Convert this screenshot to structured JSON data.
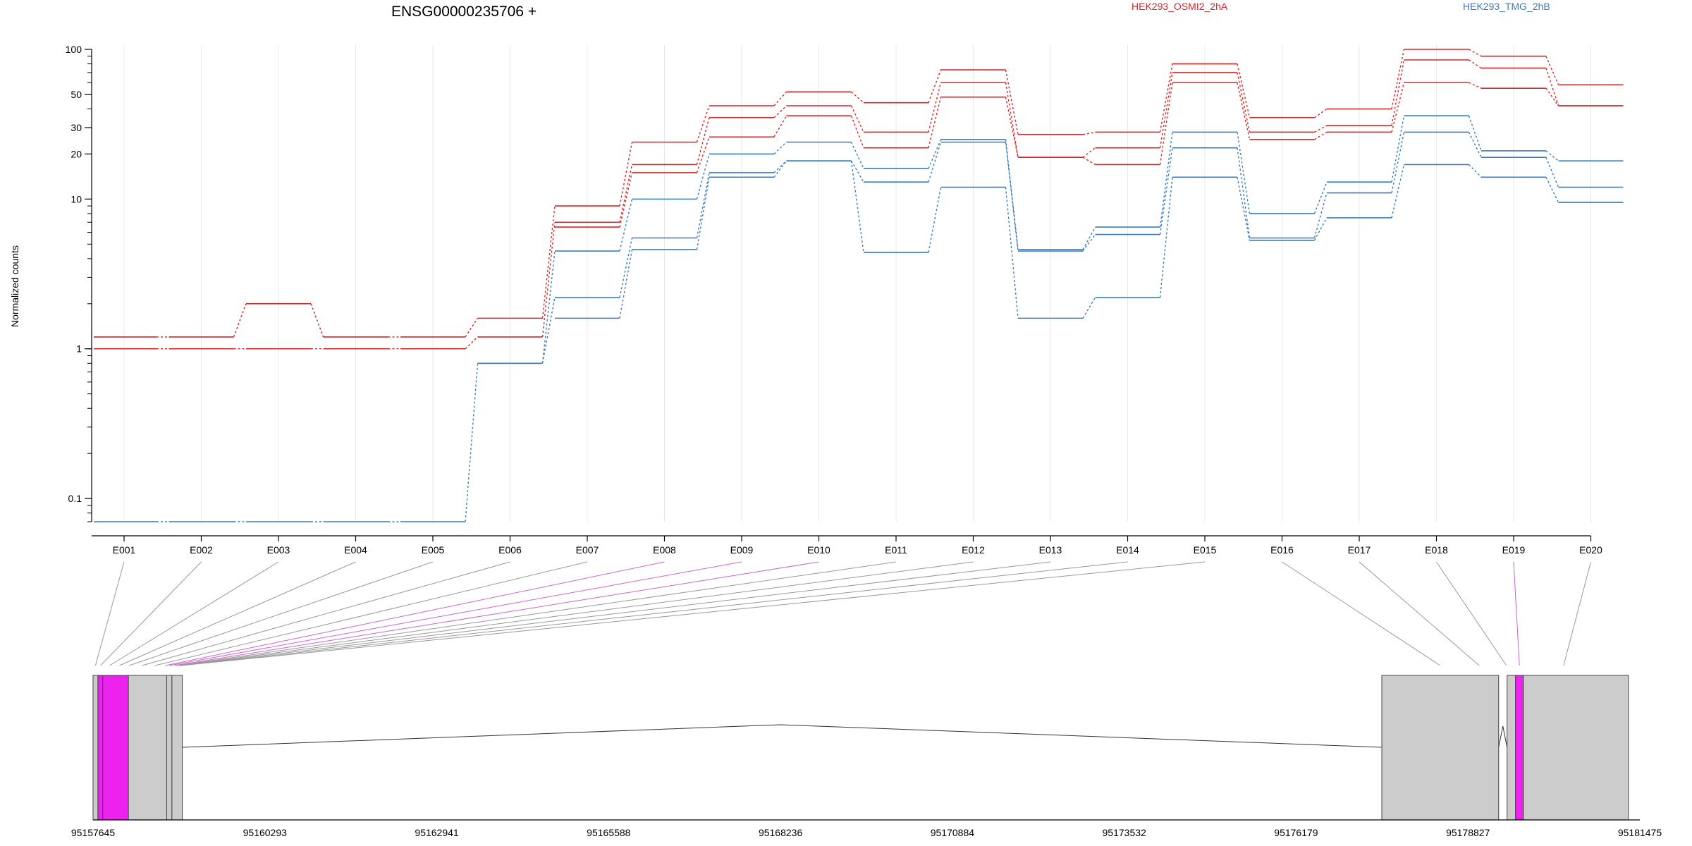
{
  "chart_data": {
    "type": "line",
    "title": "ENSG00000235706 +",
    "ylabel": "Normalized counts",
    "yscale": "log",
    "ylim": [
      0.07,
      100
    ],
    "yticks": [
      0.1,
      1,
      10,
      20,
      30,
      50,
      100
    ],
    "ytick_labels": [
      "0.1",
      "1",
      "10",
      "20",
      "30",
      "50",
      "100"
    ],
    "categories": [
      "E001",
      "E002",
      "E003",
      "E004",
      "E005",
      "E006",
      "E007",
      "E008",
      "E009",
      "E010",
      "E011",
      "E012",
      "E013",
      "E014",
      "E015",
      "E016",
      "E017",
      "E018",
      "E019",
      "E020"
    ],
    "legend": [
      {
        "label": "HEK293_OSMI2_2hA",
        "color": "#d62728"
      },
      {
        "label": "HEK293_TMG_2hB",
        "color": "#3a7dbd"
      }
    ],
    "series": [
      {
        "group": 0,
        "color": "#d62728",
        "values": [
          1.2,
          1.2,
          2.0,
          1.2,
          1.2,
          1.6,
          9.0,
          24,
          42,
          52,
          44,
          73,
          27,
          28,
          80,
          35,
          40,
          100,
          90,
          58
        ]
      },
      {
        "group": 0,
        "color": "#d62728",
        "values": [
          1.0,
          1.0,
          1.0,
          1.0,
          1.0,
          1.2,
          7.0,
          17,
          35,
          42,
          28,
          60,
          19,
          22,
          70,
          28,
          31,
          85,
          75,
          42
        ]
      },
      {
        "group": 0,
        "color": "#d62728",
        "values": [
          null,
          null,
          null,
          null,
          null,
          null,
          6.5,
          15,
          26,
          36,
          22,
          48,
          19,
          17,
          60,
          25,
          28,
          60,
          55,
          42
        ]
      },
      {
        "group": 1,
        "color": "#3a7dbd",
        "values": [
          0.07,
          0.07,
          0.07,
          0.07,
          0.07,
          0.8,
          4.5,
          10,
          20,
          24,
          16,
          25,
          4.6,
          6.5,
          28,
          8.0,
          13,
          36,
          21,
          18
        ]
      },
      {
        "group": 1,
        "color": "#3a7dbd",
        "values": [
          null,
          null,
          null,
          null,
          null,
          0.8,
          2.2,
          5.5,
          15,
          18,
          13,
          24,
          4.5,
          5.8,
          22,
          5.5,
          11,
          28,
          19,
          12
        ]
      },
      {
        "group": 1,
        "color": "#3a7dbd",
        "values": [
          null,
          null,
          null,
          null,
          null,
          null,
          1.6,
          4.6,
          14,
          18,
          4.4,
          12,
          1.6,
          2.2,
          14,
          5.3,
          7.5,
          17,
          14,
          9.5
        ]
      }
    ],
    "exon_links": [
      {
        "color": "#999999"
      },
      {
        "color": "#999999"
      },
      {
        "color": "#999999"
      },
      {
        "color": "#999999"
      },
      {
        "color": "#999999"
      },
      {
        "color": "#999999"
      },
      {
        "color": "#999999"
      },
      {
        "color": "#cc66cc"
      },
      {
        "color": "#cc66cc"
      },
      {
        "color": "#cc66cc"
      },
      {
        "color": "#999999"
      },
      {
        "color": "#999999"
      },
      {
        "color": "#999999"
      },
      {
        "color": "#999999"
      },
      {
        "color": "#999999"
      },
      {
        "color": "#999999"
      },
      {
        "color": "#999999"
      },
      {
        "color": "#999999"
      },
      {
        "color": "#cc66cc"
      },
      {
        "color": "#999999"
      }
    ],
    "genome_axis": {
      "range": [
        95157645,
        95181475
      ],
      "tick_labels": [
        "95157645",
        "95160293",
        "95162941",
        "95165588",
        "95168236",
        "95170884",
        "95173532",
        "95176179",
        "95178827",
        "95181475"
      ]
    },
    "gene_model": {
      "exon_fill": "#cccccc",
      "highlight_fill": "#ee22ee",
      "exons": [
        {
          "start": 95157645,
          "end": 95157720,
          "highlight": false
        },
        {
          "start": 95157720,
          "end": 95157795,
          "highlight": true
        },
        {
          "start": 95157795,
          "end": 95158190,
          "highlight": true
        },
        {
          "start": 95158190,
          "end": 95158780,
          "highlight": false
        },
        {
          "start": 95158780,
          "end": 95158860,
          "highlight": false
        },
        {
          "start": 95158860,
          "end": 95159020,
          "highlight": false
        },
        {
          "start": 95177500,
          "end": 95179300,
          "highlight": false
        },
        {
          "start": 95179430,
          "end": 95179560,
          "highlight": false
        },
        {
          "start": 95179560,
          "end": 95179680,
          "highlight": true
        },
        {
          "start": 95179680,
          "end": 95181300,
          "highlight": false
        }
      ],
      "introns": [
        {
          "from": 95159020,
          "to": 95177500,
          "apex": 95168236
        },
        {
          "from": 95179300,
          "to": 95179430,
          "apex": 95179365
        }
      ]
    }
  }
}
